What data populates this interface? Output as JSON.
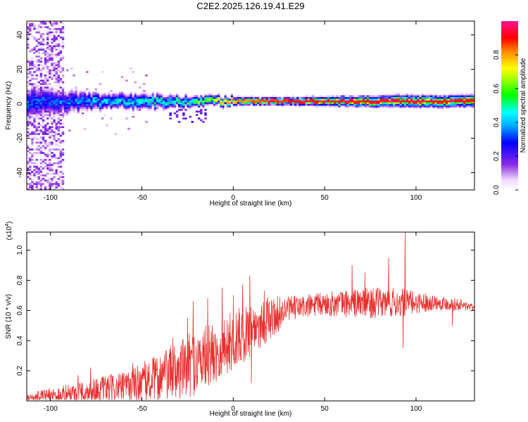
{
  "figure_title": "C2E2.2025.126.19.41.E29",
  "colors": {
    "snr_line": "#e8302e",
    "frame": "#000000",
    "background": "#ffffff"
  },
  "chart_data": [
    {
      "type": "heatmap",
      "title": "C2E2.2025.126.19.41.E29",
      "xlabel": "Height of straight line (km)",
      "ylabel": "Frequency (Hz)",
      "xlim": [
        -113,
        132
      ],
      "ylim": [
        -50,
        48
      ],
      "xticks": [
        -100,
        -50,
        0,
        50,
        100
      ],
      "xtick_labels": [
        "-100",
        "-50",
        "0",
        "50",
        "100"
      ],
      "yticks": [
        -40,
        -20,
        0,
        20,
        40
      ],
      "ytick_labels": [
        "-40",
        "-20",
        "0",
        "20",
        "40"
      ],
      "colorbar": {
        "label": "Normalized spectral amplitude",
        "range": [
          0,
          1
        ],
        "ticks": [
          0.0,
          0.2,
          0.4,
          0.6,
          0.8
        ],
        "tick_labels": [
          "0.0",
          "0.2",
          "0.4",
          "0.6",
          "0.8"
        ],
        "colormap": "rainbow (white-violet-blue-cyan-green-yellow-red-magenta)"
      },
      "signal_band": {
        "description": "Narrow band near 0 Hz; diffuse broadband noise at low heights",
        "center_freq_hz": 1,
        "profile": [
          {
            "x": -110,
            "halfwidth_hz": 8,
            "peak_amp": 0.35
          },
          {
            "x": -90,
            "halfwidth_hz": 6,
            "peak_amp": 0.35
          },
          {
            "x": -70,
            "halfwidth_hz": 4,
            "peak_amp": 0.45
          },
          {
            "x": -50,
            "halfwidth_hz": 4,
            "peak_amp": 0.5
          },
          {
            "x": -30,
            "halfwidth_hz": 3,
            "peak_amp": 0.55
          },
          {
            "x": -10,
            "halfwidth_hz": 2.5,
            "peak_amp": 0.7
          },
          {
            "x": 10,
            "halfwidth_hz": 2,
            "peak_amp": 0.85
          },
          {
            "x": 30,
            "halfwidth_hz": 2,
            "peak_amp": 0.9
          },
          {
            "x": 60,
            "halfwidth_hz": 2.5,
            "peak_amp": 0.9
          },
          {
            "x": 90,
            "halfwidth_hz": 3,
            "peak_amp": 0.92
          },
          {
            "x": 132,
            "halfwidth_hz": 3,
            "peak_amp": 0.9
          }
        ]
      },
      "noise_region": {
        "x_from": -113,
        "x_to": -93,
        "freq_extent_hz": [
          -50,
          48
        ]
      }
    },
    {
      "type": "line",
      "title": "",
      "xlabel": "Height of straight line (km)",
      "ylabel": "SNR (10 * v/v)",
      "y_multiplier_label": "(x10",
      "y_multiplier_exponent": "4",
      "y_multiplier_suffix": ")",
      "xlim": [
        -113,
        132
      ],
      "ylim": [
        0,
        1.12
      ],
      "xticks": [
        -100,
        -50,
        0,
        50,
        100
      ],
      "xtick_labels": [
        "-100",
        "-50",
        "0",
        "50",
        "100"
      ],
      "yticks": [
        0.2,
        0.4,
        0.6,
        0.8,
        1.0
      ],
      "ytick_labels": [
        "0.2",
        "0.4",
        "0.6",
        "0.8",
        "1.0"
      ],
      "series": [
        {
          "envelope": [
            {
              "x": -113,
              "base": 0.02,
              "noise": 0.03
            },
            {
              "x": -100,
              "base": 0.04,
              "noise": 0.05
            },
            {
              "x": -80,
              "base": 0.07,
              "noise": 0.08
            },
            {
              "x": -60,
              "base": 0.1,
              "noise": 0.1
            },
            {
              "x": -45,
              "base": 0.15,
              "noise": 0.15
            },
            {
              "x": -30,
              "base": 0.22,
              "noise": 0.2
            },
            {
              "x": -20,
              "base": 0.28,
              "noise": 0.22
            },
            {
              "x": -10,
              "base": 0.34,
              "noise": 0.2
            },
            {
              "x": 0,
              "base": 0.42,
              "noise": 0.2
            },
            {
              "x": 10,
              "base": 0.5,
              "noise": 0.18
            },
            {
              "x": 20,
              "base": 0.56,
              "noise": 0.15
            },
            {
              "x": 30,
              "base": 0.62,
              "noise": 0.08
            },
            {
              "x": 50,
              "base": 0.65,
              "noise": 0.08
            },
            {
              "x": 70,
              "base": 0.66,
              "noise": 0.1
            },
            {
              "x": 90,
              "base": 0.66,
              "noise": 0.1
            },
            {
              "x": 110,
              "base": 0.66,
              "noise": 0.05
            },
            {
              "x": 125,
              "base": 0.64,
              "noise": 0.04
            },
            {
              "x": 132,
              "base": 0.62,
              "noise": 0.02
            }
          ],
          "spikes": [
            {
              "x": -85,
              "y": 0.17
            },
            {
              "x": -78,
              "y": 0.22
            },
            {
              "x": -55,
              "y": 0.25
            },
            {
              "x": -33,
              "y": 0.42
            },
            {
              "x": -25,
              "y": 0.55
            },
            {
              "x": -22,
              "y": 0.66
            },
            {
              "x": -14,
              "y": 0.68
            },
            {
              "x": -6,
              "y": 0.75
            },
            {
              "x": 0,
              "y": 0.7
            },
            {
              "x": 5,
              "y": 0.77
            },
            {
              "x": 9,
              "y": 0.83
            },
            {
              "x": 10,
              "y": 0.12
            },
            {
              "x": 17,
              "y": 0.73
            },
            {
              "x": 65,
              "y": 0.9
            },
            {
              "x": 72,
              "y": 0.85
            },
            {
              "x": 85,
              "y": 0.95
            },
            {
              "x": 93,
              "y": 0.35
            },
            {
              "x": 94,
              "y": 1.12
            },
            {
              "x": 120,
              "y": 0.5
            }
          ]
        }
      ]
    }
  ]
}
